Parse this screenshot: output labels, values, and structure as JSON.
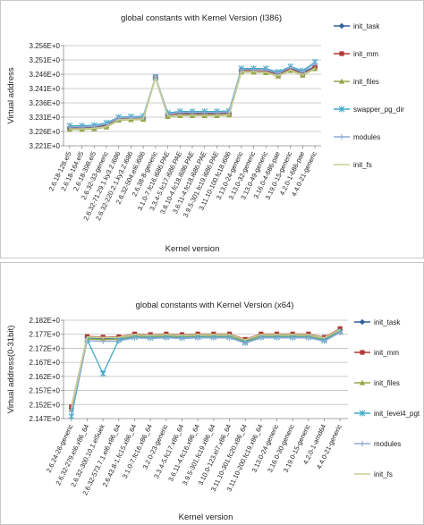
{
  "chart_data": [
    {
      "type": "line",
      "title": "global constants with Kernel Version (I386)",
      "xlabel": "Kernel version",
      "ylabel": "Virtual address",
      "yticks": [
        "3.221E+0",
        "3.226E+0",
        "3.231E+0",
        "3.236E+0",
        "3.241E+0",
        "3.246E+0",
        "3.251E+0",
        "3.256E+0"
      ],
      "ylim": [
        3.221,
        3.256
      ],
      "legend_position": "right",
      "categories": [
        "2.6.18-128.el5",
        "2.6.18-164.el5",
        "2.6.18-398.el5",
        "2.6.32-33-generic",
        "2.6.32-71.29.1.ky3.2.i686",
        "2.6.32-220.2.1.ky3.2.i686",
        "2.6.32-504.el6.i686",
        "2.6.38-8-generic",
        "3.1.0-7.fc16.i686.PAE",
        "3.3.4-5.fc17.i686.PAE",
        "3.6.10-4.fc18.i686.PAE",
        "3.6.11-4.fc18.i686.PAE",
        "3.9.5-301.fc19.i686.PAE",
        "3.11.10-100.fc18.i686",
        "3.13.0-24-generic",
        "3.13.0-32-generic",
        "3.13.0-49-generic",
        "3.16.0-4-686-pae",
        "3.19.0-15-generic",
        "4.2.0-1-686-pae",
        "4.4.0-21-generic"
      ],
      "series": [
        {
          "name": "init_task",
          "color": "#2e5f9e",
          "marker": "diamond",
          "values": [
            3.2273,
            3.2273,
            3.2275,
            3.2282,
            3.2305,
            3.2307,
            3.2308,
            3.2448,
            3.2317,
            3.2322,
            3.2322,
            3.2322,
            3.2322,
            3.2324,
            3.2477,
            3.2477,
            3.2475,
            3.2462,
            3.2482,
            3.2465,
            3.2487
          ]
        },
        {
          "name": "init_mm",
          "color": "#b23a36",
          "marker": "square",
          "values": [
            3.2271,
            3.2271,
            3.2273,
            3.2279,
            3.2303,
            3.2305,
            3.2306,
            3.245,
            3.2318,
            3.232,
            3.232,
            3.232,
            3.232,
            3.2322,
            3.2472,
            3.2472,
            3.247,
            3.2458,
            3.2478,
            3.2461,
            3.2484
          ]
        },
        {
          "name": "init_files",
          "color": "#94a84a",
          "marker": "triangle",
          "values": [
            3.2267,
            3.2267,
            3.2269,
            3.2275,
            3.2299,
            3.2301,
            3.2302,
            3.2446,
            3.2312,
            3.2315,
            3.2315,
            3.2315,
            3.2315,
            3.2317,
            3.2467,
            3.2467,
            3.2465,
            3.2453,
            3.2473,
            3.2456,
            3.2479
          ]
        },
        {
          "name": "swapper_pg_dir",
          "color": "#40a9c8",
          "marker": "x",
          "values": [
            3.228,
            3.228,
            3.2282,
            3.229,
            3.231,
            3.2312,
            3.2313,
            3.245,
            3.2325,
            3.233,
            3.233,
            3.233,
            3.233,
            3.2332,
            3.248,
            3.248,
            3.248,
            3.2468,
            3.2487,
            3.2472,
            3.2503
          ]
        },
        {
          "name": "modules",
          "color": "#8fa9d6",
          "marker": "plus",
          "values": [
            3.2276,
            3.2276,
            3.2278,
            3.2286,
            3.2307,
            3.2309,
            3.231,
            3.2452,
            3.2321,
            3.2326,
            3.2326,
            3.2326,
            3.2326,
            3.2328,
            3.2476,
            3.2476,
            3.2476,
            3.2464,
            3.2484,
            3.2468,
            3.2496
          ]
        },
        {
          "name": "init_fs",
          "color": "#c5cf95",
          "marker": "none",
          "values": [
            3.2269,
            3.2269,
            3.2271,
            3.2277,
            3.2301,
            3.2303,
            3.2304,
            3.2448,
            3.2314,
            3.2317,
            3.2317,
            3.2317,
            3.2317,
            3.2319,
            3.2469,
            3.2469,
            3.2467,
            3.2455,
            3.2475,
            3.2458,
            3.2481
          ]
        }
      ]
    },
    {
      "type": "line",
      "title": "global constants with Kernel Version (x64)",
      "xlabel": "Kernel version",
      "ylabel": "Virtual address(0-31bit)",
      "yticks": [
        "2.147E+0",
        "2.152E+0",
        "2.157E+0",
        "2.162E+0",
        "2.167E+0",
        "2.172E+0",
        "2.177E+0",
        "2.182E+0"
      ],
      "ylim": [
        2.147,
        2.182
      ],
      "legend_position": "right",
      "categories": [
        "2.6.24-26-generic",
        "2.6.32-279.el6.x86_64",
        "2.6.32-300.10.1.el5uek",
        "2.6.32-573.7.1.el6.x86_64",
        "2.6.43.8-1.fc15.x86_64",
        "3.1.0-7.fc16.x86_64",
        "3.2.0-23-generic",
        "3.3.4-5.fc17.x86_64",
        "3.6.11-4.fc16.x86_64",
        "3.9.5-301.fc19.x86_64",
        "3.10.0-123.el7.x86_64",
        "3.11.10-301.fc20.x86_64",
        "3.11.10-200.fc19.x86_64",
        "3.13.0-24-generic",
        "3.16.0-30-generic",
        "3.19.0-15-generic",
        "4.2.0-1-amd64",
        "4.4.0-21-generic"
      ],
      "series": [
        {
          "name": "init_task",
          "color": "#2e5f9e",
          "marker": "diamond",
          "values": [
            2.1505,
            2.1758,
            2.1755,
            2.1757,
            2.1768,
            2.1766,
            2.1768,
            2.1766,
            2.1768,
            2.1768,
            2.1768,
            2.1748,
            2.1768,
            2.1768,
            2.1768,
            2.1768,
            2.1756,
            2.1785
          ]
        },
        {
          "name": "init_mm",
          "color": "#b23a36",
          "marker": "square",
          "values": [
            2.1512,
            2.1762,
            2.176,
            2.1761,
            2.1771,
            2.1769,
            2.1771,
            2.1769,
            2.1771,
            2.1771,
            2.1771,
            2.1752,
            2.1771,
            2.1771,
            2.1771,
            2.1771,
            2.1759,
            2.179
          ]
        },
        {
          "name": "init_files",
          "color": "#94a84a",
          "marker": "triangle",
          "values": [
            2.1502,
            2.1753,
            2.1751,
            2.1752,
            2.1763,
            2.1761,
            2.1763,
            2.1761,
            2.1763,
            2.1763,
            2.1763,
            2.1744,
            2.1763,
            2.1763,
            2.1763,
            2.1763,
            2.1751,
            2.1781
          ]
        },
        {
          "name": "init_level4_pgt",
          "color": "#40a9c8",
          "marker": "x",
          "values": [
            2.1478,
            2.175,
            2.163,
            2.175,
            2.176,
            2.1758,
            2.176,
            2.1758,
            2.176,
            2.176,
            2.176,
            2.174,
            2.176,
            2.176,
            2.176,
            2.176,
            2.1748,
            2.1779
          ]
        },
        {
          "name": "modules",
          "color": "#8fa9d6",
          "marker": "plus",
          "values": [
            2.1495,
            2.1747,
            2.1745,
            2.1746,
            2.1757,
            2.1755,
            2.1757,
            2.1755,
            2.1757,
            2.1757,
            2.1757,
            2.1738,
            2.1757,
            2.1757,
            2.1757,
            2.1757,
            2.1745,
            2.1776
          ]
        },
        {
          "name": "init_fs",
          "color": "#c5cf95",
          "marker": "none",
          "values": [
            2.1508,
            2.176,
            2.1758,
            2.1759,
            2.1769,
            2.1767,
            2.1769,
            2.1767,
            2.1769,
            2.1769,
            2.1769,
            2.175,
            2.1769,
            2.1769,
            2.1769,
            2.1769,
            2.1757,
            2.1787
          ]
        }
      ]
    }
  ]
}
